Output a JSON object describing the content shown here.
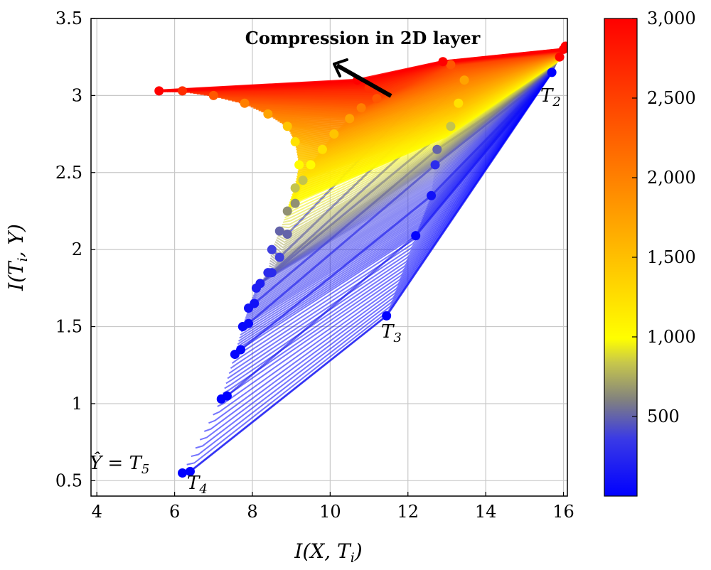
{
  "chart_data": {
    "type": "line",
    "title": "",
    "xlabel": "I(X,T_i)",
    "ylabel": "I(T_i,Y)",
    "xlim": [
      3.85,
      16.1
    ],
    "ylim": [
      0.4,
      3.5
    ],
    "xticks": [
      "4",
      "6",
      "8",
      "10",
      "12",
      "14",
      "16"
    ],
    "yticks": [
      "0.5",
      "1",
      "1.5",
      "2",
      "2.5",
      "3",
      "3.5"
    ],
    "grid": true,
    "colorbar": {
      "ticks": [
        "500",
        "1,000",
        "1,500",
        "2,000",
        "2,500",
        "3,000"
      ],
      "range": [
        0,
        3000
      ],
      "colors": [
        "#0000ff",
        "#5a5ac8",
        "#808080",
        "#b4b450",
        "#ffff00",
        "#ff8c00",
        "#ff0000"
      ]
    },
    "annotations": {
      "arrow_text": "Compression in 2D layer",
      "t2": "T_2",
      "t3": "T_3",
      "t4": "T_4",
      "t5": "Ŷ = T_5"
    },
    "series": [
      {
        "name": "T_2",
        "points": [
          [
            15.7,
            3.15
          ],
          [
            15.9,
            3.25
          ],
          [
            16.0,
            3.3
          ],
          [
            16.05,
            3.32
          ]
        ]
      },
      {
        "name": "T_3",
        "points": [
          [
            11.45,
            1.57
          ],
          [
            12.2,
            2.09
          ],
          [
            12.6,
            2.35
          ],
          [
            12.7,
            2.55
          ],
          [
            12.75,
            2.65
          ],
          [
            13.1,
            2.8
          ],
          [
            13.3,
            2.95
          ],
          [
            13.45,
            3.1
          ],
          [
            13.1,
            3.2
          ],
          [
            12.9,
            3.22
          ]
        ]
      },
      {
        "name": "T_4",
        "points": [
          [
            6.4,
            0.56
          ],
          [
            7.35,
            1.05
          ],
          [
            7.7,
            1.35
          ],
          [
            7.9,
            1.52
          ],
          [
            8.05,
            1.65
          ],
          [
            8.2,
            1.78
          ],
          [
            8.5,
            1.85
          ],
          [
            8.7,
            1.95
          ],
          [
            8.9,
            2.1
          ],
          [
            9.1,
            2.3
          ],
          [
            9.3,
            2.45
          ],
          [
            9.5,
            2.55
          ],
          [
            9.8,
            2.65
          ],
          [
            10.1,
            2.75
          ],
          [
            10.5,
            2.85
          ],
          [
            10.8,
            2.92
          ],
          [
            11.2,
            2.98
          ],
          [
            11.0,
            3.05
          ],
          [
            10.7,
            3.1
          ]
        ]
      },
      {
        "name": "T_5",
        "points": [
          [
            6.2,
            0.55
          ],
          [
            7.2,
            1.03
          ],
          [
            7.55,
            1.32
          ],
          [
            7.75,
            1.5
          ],
          [
            7.9,
            1.62
          ],
          [
            8.1,
            1.75
          ],
          [
            8.4,
            1.85
          ],
          [
            8.5,
            2.0
          ],
          [
            8.7,
            2.12
          ],
          [
            8.9,
            2.25
          ],
          [
            9.1,
            2.4
          ],
          [
            9.2,
            2.55
          ],
          [
            9.1,
            2.7
          ],
          [
            8.9,
            2.8
          ],
          [
            8.4,
            2.88
          ],
          [
            7.8,
            2.95
          ],
          [
            7.0,
            3.0
          ],
          [
            6.2,
            3.03
          ],
          [
            5.6,
            3.03
          ]
        ]
      }
    ]
  }
}
